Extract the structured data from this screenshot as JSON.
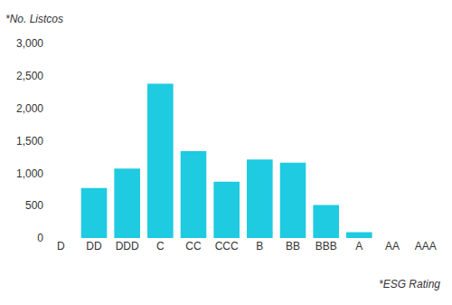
{
  "chart_data": {
    "type": "bar",
    "y_label": "*No. Listcos",
    "x_label": "*ESG Rating",
    "categories": [
      "D",
      "DD",
      "DDD",
      "C",
      "CC",
      "CCC",
      "B",
      "BB",
      "BBB",
      "A",
      "AA",
      "AAA"
    ],
    "values": [
      0,
      770,
      1070,
      2380,
      1340,
      870,
      1210,
      1160,
      510,
      90,
      0,
      0
    ],
    "color": "#1ecbe1",
    "ylim": [
      0,
      3000
    ],
    "yticks": [
      0,
      500,
      {
        "value": 1000,
        "label": "1,000"
      },
      {
        "value": 1500,
        "label": "1,500"
      },
      {
        "value": 2000,
        "label": "2,000"
      },
      {
        "value": 2500,
        "label": "2,500"
      },
      {
        "value": 3000,
        "label": "3,000"
      }
    ],
    "grid": false
  }
}
